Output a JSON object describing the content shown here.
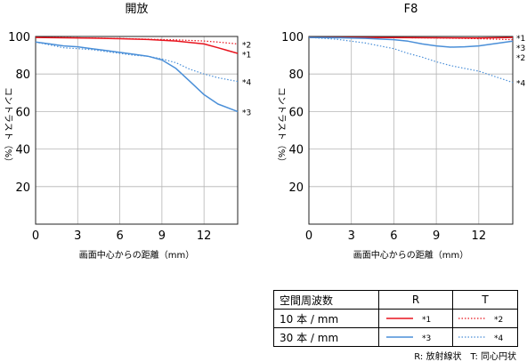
{
  "chart_data": [
    {
      "type": "line",
      "title": "開放",
      "xlabel": "画面中心からの距離（mm）",
      "ylabel": "コントラスト（%）",
      "xlim": [
        0,
        14.4
      ],
      "ylim": [
        0,
        100
      ],
      "xticks": [
        0,
        3,
        6,
        9,
        12
      ],
      "yticks": [
        20,
        40,
        60,
        80,
        100
      ],
      "series": [
        {
          "name": "*1",
          "color": "#e8141e",
          "style": "solid",
          "x": [
            0,
            2,
            4,
            6,
            8,
            10,
            12,
            13,
            14.4
          ],
          "y": [
            99.5,
            99.3,
            99.1,
            98.8,
            98.4,
            97.6,
            96.0,
            94.0,
            91.0
          ]
        },
        {
          "name": "*2",
          "color": "#e8141e",
          "style": "dotted",
          "x": [
            0,
            2,
            4,
            6,
            8,
            10,
            12,
            13,
            14.4
          ],
          "y": [
            99.5,
            99.4,
            99.2,
            98.9,
            98.6,
            98.2,
            97.6,
            97.0,
            96.0
          ]
        },
        {
          "name": "*3",
          "color": "#4a8fd8",
          "style": "solid",
          "x": [
            0,
            1,
            2,
            3,
            4,
            5,
            6,
            7,
            8,
            9,
            10,
            11,
            12,
            13,
            14.4
          ],
          "y": [
            97.0,
            96.0,
            95.0,
            94.5,
            93.5,
            92.5,
            91.5,
            90.5,
            89.5,
            87.5,
            83.0,
            76.0,
            69.0,
            64.0,
            60.0
          ]
        },
        {
          "name": "*4",
          "color": "#4a8fd8",
          "style": "dotted",
          "x": [
            0,
            1,
            2,
            3,
            4,
            5,
            6,
            7,
            8,
            9,
            10,
            11,
            12,
            13,
            14.4
          ],
          "y": [
            97.0,
            95.5,
            94.0,
            93.5,
            93.0,
            92.0,
            91.0,
            90.0,
            89.5,
            88.0,
            86.0,
            82.5,
            80.0,
            78.0,
            76.0
          ]
        }
      ],
      "series_labels": [
        "*2",
        "*1",
        "*4",
        "*3"
      ]
    },
    {
      "type": "line",
      "title": "F8",
      "xlabel": "画面中心からの距離（mm）",
      "ylabel": "コントラスト（%）",
      "xlim": [
        0,
        14.4
      ],
      "ylim": [
        0,
        100
      ],
      "xticks": [
        0,
        3,
        6,
        9,
        12
      ],
      "yticks": [
        20,
        40,
        60,
        80,
        100
      ],
      "series": [
        {
          "name": "*1",
          "color": "#e8141e",
          "style": "solid",
          "x": [
            0,
            3,
            6,
            9,
            12,
            14.4
          ],
          "y": [
            99.5,
            99.5,
            99.4,
            99.3,
            99.2,
            99.5
          ]
        },
        {
          "name": "*2",
          "color": "#e8141e",
          "style": "dotted",
          "x": [
            0,
            3,
            6,
            9,
            12,
            14.4
          ],
          "y": [
            99.5,
            99.5,
            99.4,
            99.2,
            98.8,
            98.3
          ]
        },
        {
          "name": "*3",
          "color": "#4a8fd8",
          "style": "solid",
          "x": [
            0,
            2,
            4,
            6,
            7,
            8,
            9,
            10,
            11,
            12,
            13,
            14.4
          ],
          "y": [
            99.5,
            99.3,
            99.0,
            98.3,
            97.5,
            96.0,
            95.0,
            94.3,
            94.5,
            95.0,
            96.0,
            97.5
          ]
        },
        {
          "name": "*4",
          "color": "#4a8fd8",
          "style": "dotted",
          "x": [
            0,
            1,
            2,
            3,
            4,
            5,
            6,
            7,
            8,
            9,
            10,
            11,
            12,
            13,
            14.4
          ],
          "y": [
            99.5,
            99.0,
            98.5,
            97.5,
            96.5,
            95.0,
            93.5,
            91.0,
            89.0,
            86.5,
            84.5,
            83.0,
            81.5,
            79.0,
            75.5
          ]
        }
      ],
      "series_labels": [
        "*1",
        "*3",
        "*2",
        "*4"
      ]
    }
  ],
  "legend": {
    "header": "空間周波数",
    "col_r": "R",
    "col_t": "T",
    "rows": [
      {
        "label": "10 本 / mm",
        "r_key": "*1",
        "t_key": "*2",
        "color": "#e8141e"
      },
      {
        "label": "30 本 / mm",
        "r_key": "*3",
        "t_key": "*4",
        "color": "#4a8fd8"
      }
    ]
  },
  "footnote": "R: 放射線状　T: 同心円状"
}
